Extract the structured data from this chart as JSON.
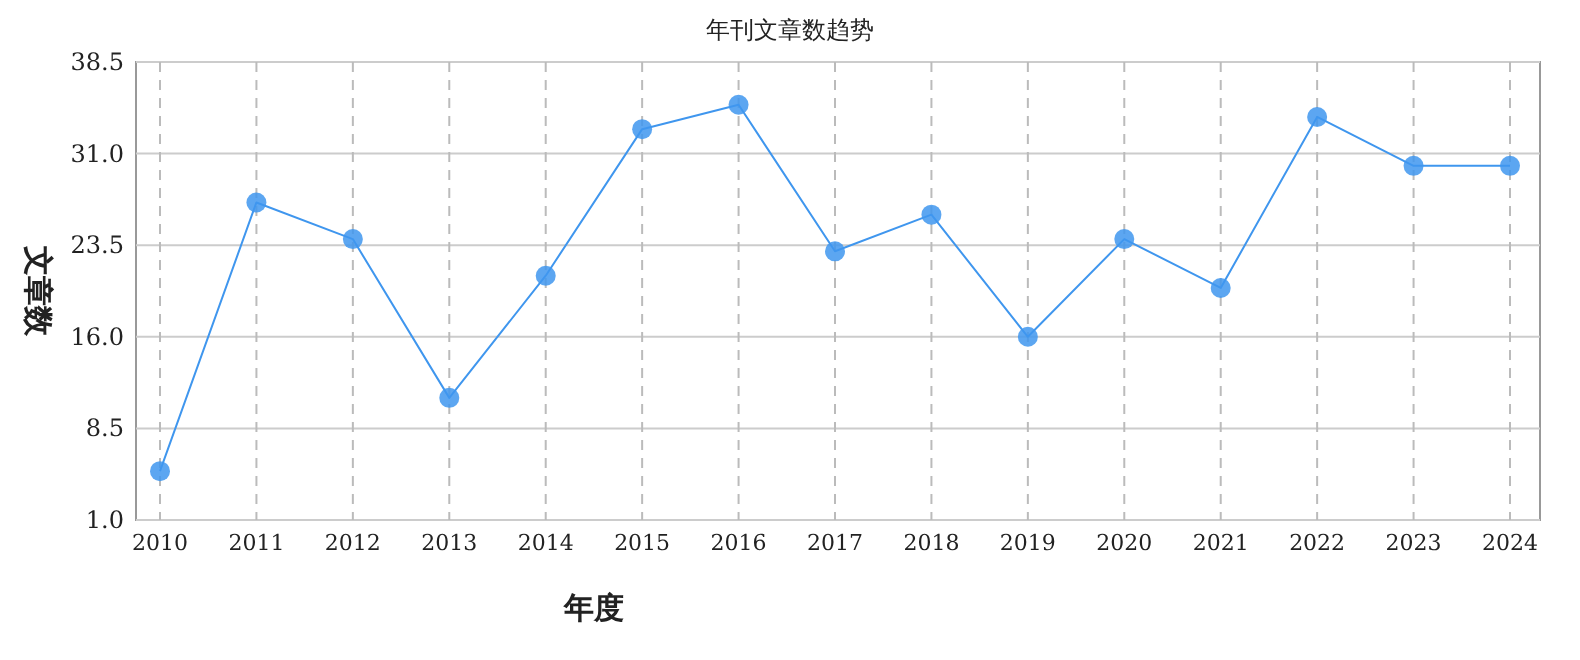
{
  "chart_data": {
    "type": "line",
    "title": "年刊文章数趋势",
    "xlabel": "年度",
    "ylabel": "文章数",
    "categories": [
      "2010",
      "2011",
      "2012",
      "2013",
      "2014",
      "2015",
      "2016",
      "2017",
      "2018",
      "2019",
      "2020",
      "2021",
      "2022",
      "2023",
      "2024"
    ],
    "series": [
      {
        "color": "#3f96ee",
        "values": [
          5,
          27,
          24,
          11,
          21,
          33,
          35,
          23,
          26,
          16,
          24,
          20,
          34,
          30,
          30
        ]
      }
    ],
    "ylim": [
      1.0,
      38.5
    ],
    "yticks": [
      {
        "value": 1,
        "label": "1.0"
      },
      {
        "value": 8.5,
        "label": "8.5"
      },
      {
        "value": 16,
        "label": "16.0"
      },
      {
        "value": 23.5,
        "label": "23.5"
      },
      {
        "value": 31,
        "label": "31.0"
      },
      {
        "value": 38.5,
        "label": "38.5"
      }
    ],
    "grid": true,
    "marker": "circle"
  }
}
